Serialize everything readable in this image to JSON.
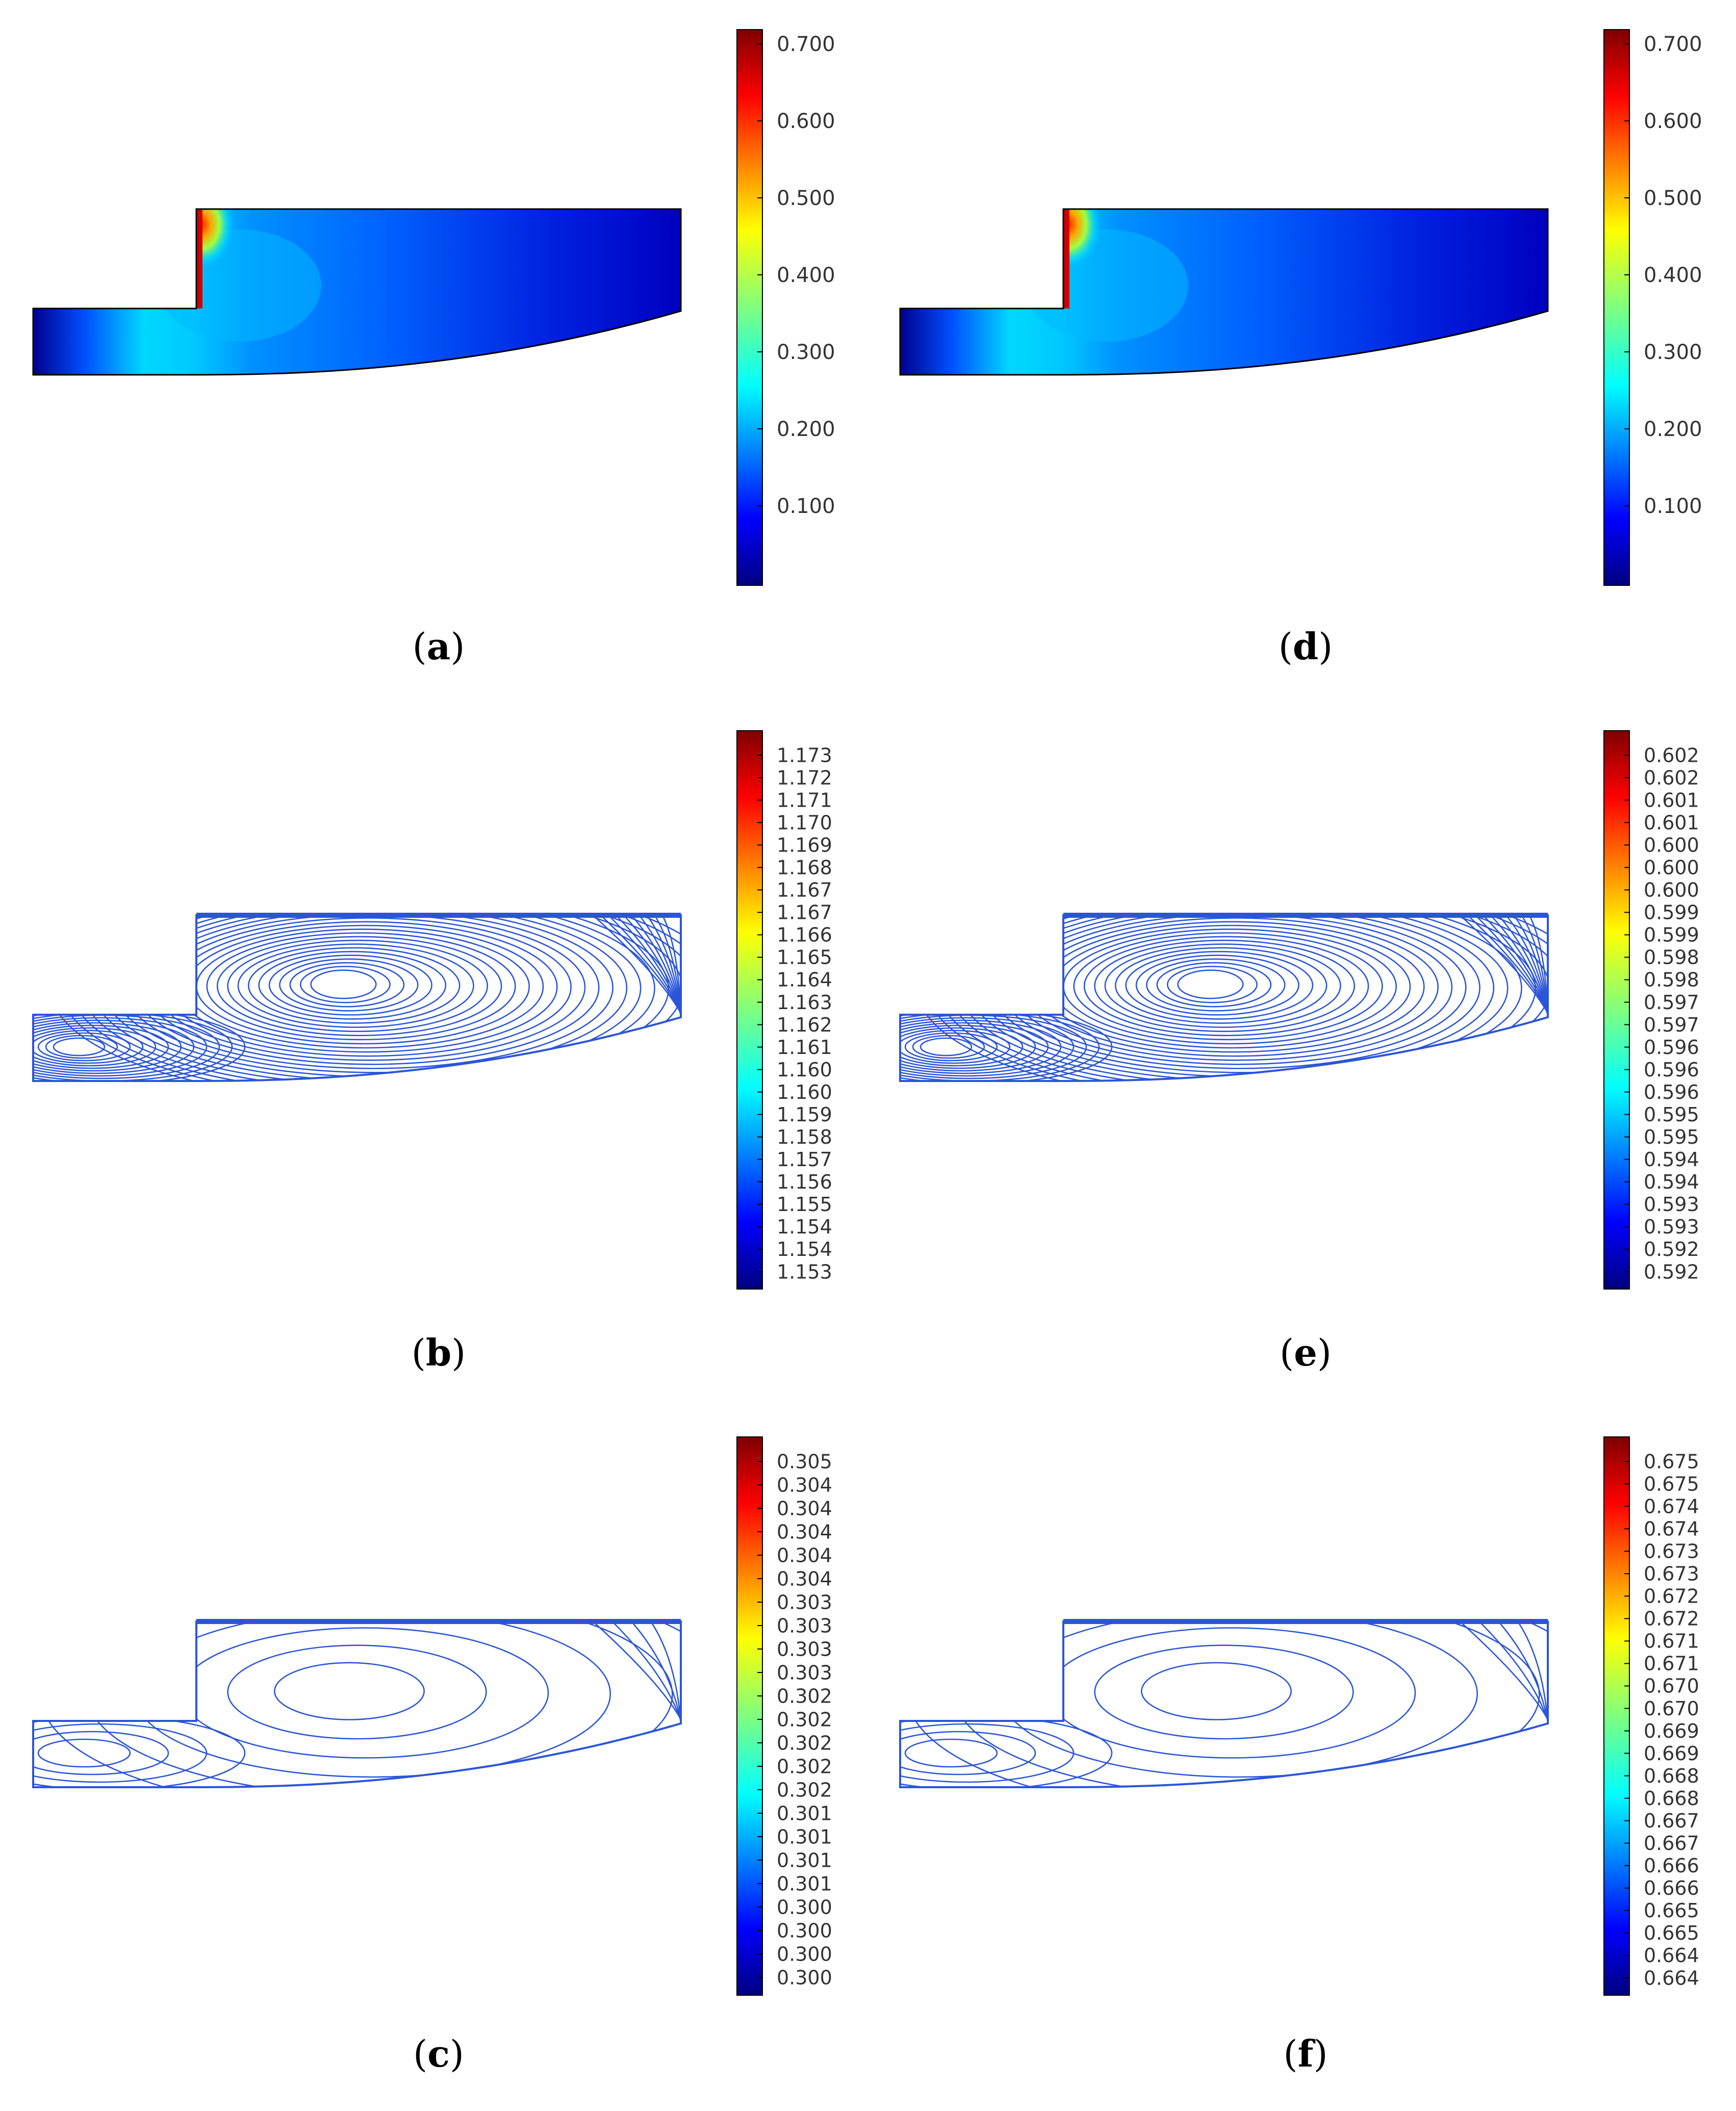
{
  "colors": {
    "background": "#ffffff",
    "contour_line": "#2b55d8",
    "outline": "#000000",
    "colormap": "jet"
  },
  "panels": [
    {
      "id": "a",
      "caption": "a",
      "type": "field",
      "colorbar": [
        "0.700",
        "0.600",
        "0.500",
        "0.400",
        "0.300",
        "0.200",
        "0.100"
      ]
    },
    {
      "id": "b",
      "caption": "b",
      "type": "contour",
      "variant": "dense",
      "colorbar": [
        "1.173",
        "1.172",
        "1.171",
        "1.170",
        "1.169",
        "1.168",
        "1.167",
        "1.167",
        "1.166",
        "1.165",
        "1.164",
        "1.163",
        "1.162",
        "1.161",
        "1.160",
        "1.160",
        "1.159",
        "1.158",
        "1.157",
        "1.156",
        "1.155",
        "1.154",
        "1.154",
        "1.153"
      ]
    },
    {
      "id": "c",
      "caption": "c",
      "type": "contour",
      "variant": "sparse",
      "colorbar": [
        "0.305",
        "0.304",
        "0.304",
        "0.304",
        "0.304",
        "0.304",
        "0.303",
        "0.303",
        "0.303",
        "0.303",
        "0.302",
        "0.302",
        "0.302",
        "0.302",
        "0.302",
        "0.301",
        "0.301",
        "0.301",
        "0.301",
        "0.300",
        "0.300",
        "0.300",
        "0.300"
      ]
    },
    {
      "id": "d",
      "caption": "d",
      "type": "field",
      "colorbar": [
        "0.700",
        "0.600",
        "0.500",
        "0.400",
        "0.300",
        "0.200",
        "0.100"
      ]
    },
    {
      "id": "e",
      "caption": "e",
      "type": "contour",
      "variant": "dense",
      "colorbar": [
        "0.602",
        "0.602",
        "0.601",
        "0.601",
        "0.600",
        "0.600",
        "0.600",
        "0.599",
        "0.599",
        "0.598",
        "0.598",
        "0.597",
        "0.597",
        "0.596",
        "0.596",
        "0.596",
        "0.595",
        "0.595",
        "0.594",
        "0.594",
        "0.593",
        "0.593",
        "0.592",
        "0.592"
      ]
    },
    {
      "id": "f",
      "caption": "f",
      "type": "contour",
      "variant": "sparse",
      "colorbar": [
        "0.675",
        "0.675",
        "0.674",
        "0.674",
        "0.673",
        "0.673",
        "0.672",
        "0.672",
        "0.671",
        "0.671",
        "0.670",
        "0.670",
        "0.669",
        "0.669",
        "0.668",
        "0.668",
        "0.667",
        "0.667",
        "0.666",
        "0.666",
        "0.665",
        "0.665",
        "0.664",
        "0.664"
      ]
    }
  ]
}
